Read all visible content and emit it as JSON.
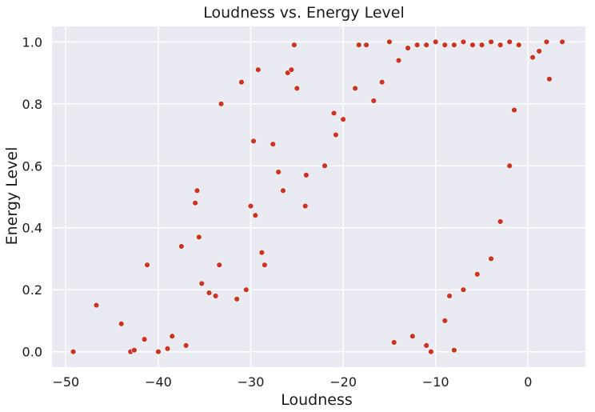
{
  "chart_data": {
    "type": "scatter",
    "title": "Loudness vs. Energy Level",
    "xlabel": "Loudness",
    "ylabel": "Energy Level",
    "xlim": [
      -51.5,
      6.2
    ],
    "ylim": [
      -0.05,
      1.05
    ],
    "xticks": [
      -50,
      -40,
      -30,
      -20,
      -10,
      0
    ],
    "yticks": [
      0.0,
      0.2,
      0.4,
      0.6,
      0.8,
      1.0
    ],
    "xtick_labels": [
      "−50",
      "−40",
      "−30",
      "−20",
      "−10",
      "0"
    ],
    "ytick_labels": [
      "0.0",
      "0.2",
      "0.4",
      "0.6",
      "0.8",
      "1.0"
    ],
    "grid": true,
    "colors": {
      "background": "#eaeaf2",
      "grid": "#ffffff",
      "point": "#cc3322"
    },
    "series": [
      {
        "points": [
          [
            -49.2,
            0.0
          ],
          [
            -46.7,
            0.15
          ],
          [
            -44.0,
            0.09
          ],
          [
            -43.0,
            0.0
          ],
          [
            -42.6,
            0.005
          ],
          [
            -41.5,
            0.04
          ],
          [
            -41.2,
            0.28
          ],
          [
            -40.0,
            0.0
          ],
          [
            -39.0,
            0.01
          ],
          [
            -38.5,
            0.05
          ],
          [
            -37.5,
            0.34
          ],
          [
            -37.0,
            0.02
          ],
          [
            -36.0,
            0.48
          ],
          [
            -35.8,
            0.52
          ],
          [
            -35.6,
            0.37
          ],
          [
            -35.3,
            0.22
          ],
          [
            -34.5,
            0.19
          ],
          [
            -33.8,
            0.18
          ],
          [
            -33.4,
            0.28
          ],
          [
            -33.2,
            0.8
          ],
          [
            -31.5,
            0.17
          ],
          [
            -31.0,
            0.87
          ],
          [
            -30.5,
            0.2
          ],
          [
            -30.0,
            0.47
          ],
          [
            -29.7,
            0.68
          ],
          [
            -29.5,
            0.44
          ],
          [
            -29.2,
            0.91
          ],
          [
            -28.8,
            0.32
          ],
          [
            -28.5,
            0.28
          ],
          [
            -27.6,
            0.67
          ],
          [
            -27.0,
            0.58
          ],
          [
            -26.5,
            0.52
          ],
          [
            -26.0,
            0.9
          ],
          [
            -25.6,
            0.91
          ],
          [
            -25.3,
            0.99
          ],
          [
            -25.0,
            0.85
          ],
          [
            -24.0,
            0.57
          ],
          [
            -24.1,
            0.47
          ],
          [
            -22.0,
            0.6
          ],
          [
            -21.0,
            0.77
          ],
          [
            -20.8,
            0.7
          ],
          [
            -20.0,
            0.75
          ],
          [
            -18.7,
            0.85
          ],
          [
            -18.3,
            0.99
          ],
          [
            -17.5,
            0.99
          ],
          [
            -16.7,
            0.81
          ],
          [
            -15.8,
            0.87
          ],
          [
            -15.0,
            1.0
          ],
          [
            -14.0,
            0.94
          ],
          [
            -13.0,
            0.98
          ],
          [
            -12.0,
            0.99
          ],
          [
            -11.0,
            0.99
          ],
          [
            -10.0,
            1.0
          ],
          [
            -9.0,
            0.99
          ],
          [
            -8.0,
            0.99
          ],
          [
            -7.0,
            1.0
          ],
          [
            -6.0,
            0.99
          ],
          [
            -5.0,
            0.99
          ],
          [
            -4.0,
            1.0
          ],
          [
            -3.0,
            0.99
          ],
          [
            -2.0,
            1.0
          ],
          [
            -1.0,
            0.99
          ],
          [
            0.5,
            0.95
          ],
          [
            1.2,
            0.97
          ],
          [
            2.0,
            1.0
          ],
          [
            2.3,
            0.88
          ],
          [
            3.7,
            1.0
          ],
          [
            -11.0,
            0.02
          ],
          [
            -10.5,
            0.0
          ],
          [
            -8.0,
            0.005
          ],
          [
            -14.5,
            0.03
          ],
          [
            -12.5,
            0.05
          ],
          [
            -9.0,
            0.1
          ],
          [
            -8.5,
            0.18
          ],
          [
            -7.0,
            0.2
          ],
          [
            -5.5,
            0.25
          ],
          [
            -4.0,
            0.3
          ],
          [
            -3.0,
            0.42
          ],
          [
            -2.0,
            0.6
          ],
          [
            -1.5,
            0.78
          ]
        ]
      }
    ]
  }
}
